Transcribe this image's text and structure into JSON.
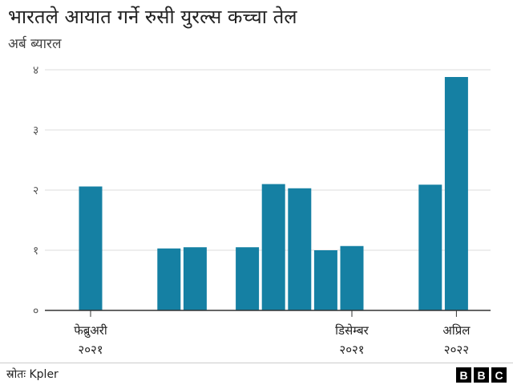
{
  "header": {
    "title": "भारतले आयात गर्ने रुसी युरल्स कच्चा तेल",
    "subtitle": "अर्ब ब्यारल"
  },
  "footer": {
    "source": "स्रोतः Kpler",
    "logo_letters": [
      "B",
      "B",
      "C"
    ]
  },
  "colors": {
    "bar": "#1580a3",
    "grid": "#dddddd",
    "axis": "#333333"
  },
  "chart_data": {
    "type": "bar",
    "title": "भारतले आयात गर्ने रुसी युरल्स कच्चा तेल",
    "ylabel": "अर्ब ब्यारल",
    "ylim": [
      0,
      4
    ],
    "y_ticks": [
      {
        "value": 0,
        "label": "०"
      },
      {
        "value": 1,
        "label": "१"
      },
      {
        "value": 2,
        "label": "२"
      },
      {
        "value": 3,
        "label": "३"
      },
      {
        "value": 4,
        "label": "४"
      }
    ],
    "categories": [
      "Feb 2021",
      "Mar 2021",
      "Apr 2021",
      "May 2021",
      "Jun 2021",
      "Jul 2021",
      "Aug 2021",
      "Sep 2021",
      "Oct 2021",
      "Nov 2021",
      "Dec 2021",
      "Jan 2022",
      "Feb 2022",
      "Mar 2022",
      "Apr 2022"
    ],
    "values": [
      2.06,
      0,
      0,
      1.03,
      1.05,
      0,
      1.05,
      2.1,
      2.03,
      1.0,
      1.07,
      0,
      0,
      2.09,
      3.88
    ],
    "x_tick_labels": [
      {
        "index": 0,
        "line1": "फेब्रुअरी",
        "line2": "२०२१"
      },
      {
        "index": 10,
        "line1": "डिसेम्बर",
        "line2": "२०२१"
      },
      {
        "index": 14,
        "line1": "अप्रिल",
        "line2": "२०२२"
      }
    ],
    "grid": true
  }
}
